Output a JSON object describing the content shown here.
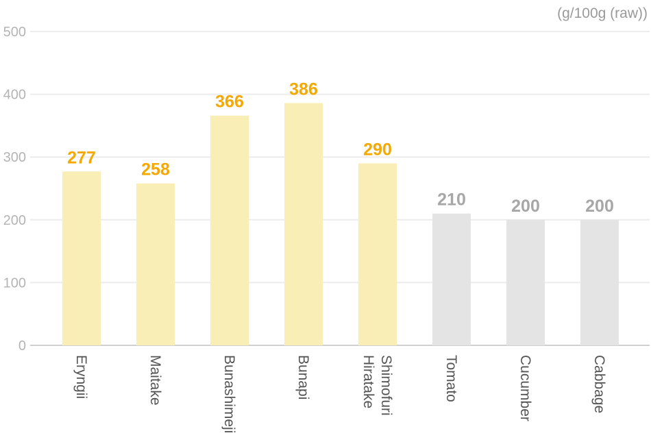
{
  "chart_data": {
    "type": "bar",
    "unit_label": "(g/100g (raw))",
    "categories": [
      [
        "Eryngii"
      ],
      [
        "Maitake"
      ],
      [
        "Bunashimeji"
      ],
      [
        "Bunapi"
      ],
      [
        "Shimofuri",
        "Hiratake"
      ],
      [
        "Tomato"
      ],
      [
        "Cucumber"
      ],
      [
        "Cabbage"
      ]
    ],
    "values": [
      277,
      258,
      366,
      386,
      290,
      210,
      200,
      200
    ],
    "groups": [
      "mushroom",
      "mushroom",
      "mushroom",
      "mushroom",
      "mushroom",
      "vegetable",
      "vegetable",
      "vegetable"
    ],
    "ylim": [
      0,
      500
    ],
    "yticks": [
      "0",
      "100",
      "200",
      "300",
      "400",
      "500"
    ],
    "grid": true,
    "colors": {
      "mushroom_bar": "#f9eeb5",
      "mushroom_label": "#f5a800",
      "vegetable_bar": "#e4e4e4",
      "vegetable_label": "#a7a7a7"
    }
  }
}
